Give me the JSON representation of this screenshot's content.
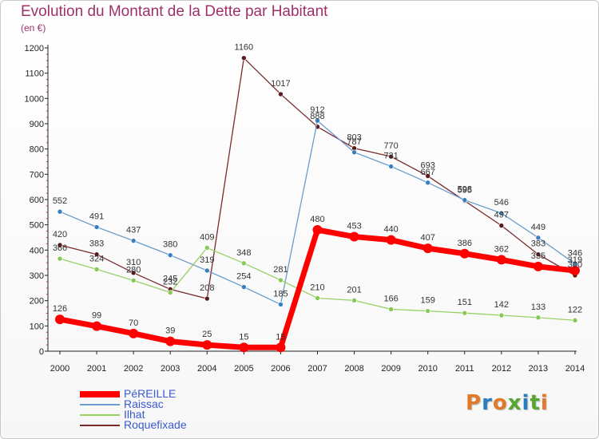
{
  "title": "Evolution du Montant de la Dette par Habitant",
  "subtitle": "(en €)",
  "logo": {
    "text": "Proxiti",
    "letters": [
      {
        "ch": "P",
        "color": "#e07a2a"
      },
      {
        "ch": "r",
        "color": "#2a7ec0"
      },
      {
        "ch": "o",
        "color": "#e07a2a"
      },
      {
        "ch": "x",
        "color": "#58a531"
      },
      {
        "ch": "i",
        "color": "#2a7ec0"
      },
      {
        "ch": "t",
        "color": "#58a531"
      },
      {
        "ch": "i",
        "color": "#e07a2a"
      }
    ]
  },
  "chart_data": {
    "type": "line",
    "title": "Evolution du Montant de la Dette par Habitant",
    "subtitle": "(en €)",
    "x": [
      "2000",
      "2001",
      "2002",
      "2003",
      "2004",
      "2005",
      "2006",
      "2007",
      "2008",
      "2009",
      "2010",
      "2011",
      "2012",
      "2013",
      "2014"
    ],
    "ylim": [
      0,
      1200
    ],
    "yticks": [
      0,
      100,
      200,
      300,
      400,
      500,
      600,
      700,
      800,
      900,
      1000,
      1100,
      1200
    ],
    "grid": false,
    "legend_position": "bottom-left",
    "series": [
      {
        "name": "Roquefixade",
        "color": "#7a2a2a",
        "point_color": "#5a1a1a",
        "width": 1.3,
        "values": [
          420,
          383,
          310,
          245,
          208,
          1160,
          1017,
          888,
          803,
          770,
          693,
          595,
          497,
          383,
          300
        ]
      },
      {
        "name": "Raissac",
        "color": "#6a9ccc",
        "point_color": "#3a7ec0",
        "width": 1.3,
        "values": [
          552,
          491,
          437,
          380,
          319,
          254,
          185,
          912,
          787,
          731,
          667,
          598,
          546,
          449,
          346
        ]
      },
      {
        "name": "Ilhat",
        "color": "#99d066",
        "point_color": "#88c855",
        "width": 1.3,
        "values": [
          366,
          324,
          280,
          232,
          409,
          348,
          281,
          210,
          201,
          166,
          159,
          151,
          142,
          133,
          122
        ]
      },
      {
        "name": "PéREILLE",
        "color": "#ff0000",
        "point_color": "#ff0000",
        "width": 7,
        "values": [
          126,
          99,
          70,
          39,
          25,
          15,
          15,
          480,
          453,
          440,
          407,
          386,
          362,
          335,
          319
        ]
      }
    ],
    "legend_order": [
      "PéREILLE",
      "Raissac",
      "Ilhat",
      "Roquefixade"
    ]
  }
}
